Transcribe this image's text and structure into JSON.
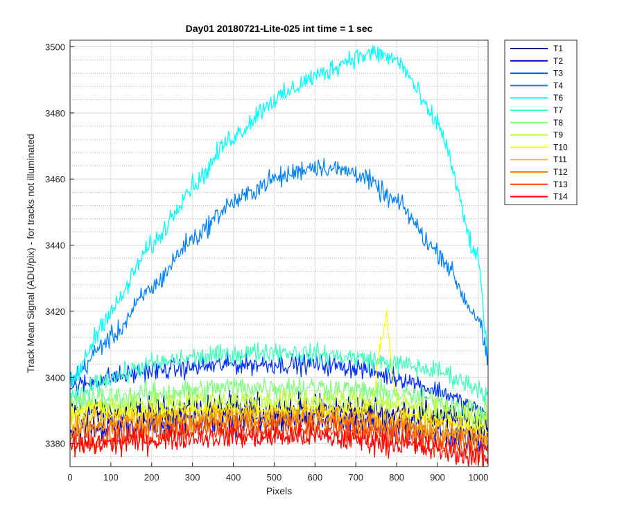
{
  "chart_data": {
    "type": "line",
    "title": "Day01 20180721-Lite-025 int time = 1 sec",
    "xlabel": "Pixels",
    "ylabel": "Track Mean Signal (ADU/pix) - for tracks not illuminated",
    "xlim": [
      0,
      1024
    ],
    "ylim": [
      3373,
      3502
    ],
    "xticks": [
      0,
      100,
      200,
      300,
      400,
      500,
      600,
      700,
      800,
      900,
      1000
    ],
    "yticks": [
      3380,
      3400,
      3420,
      3440,
      3460,
      3480,
      3500
    ],
    "grid": true,
    "minor_grid": true,
    "legend_position": "outside-right",
    "series": [
      {
        "name": "T1",
        "color": "#00008F",
        "x": [
          0,
          100,
          200,
          300,
          400,
          500,
          600,
          700,
          800,
          900,
          1000,
          1024
        ],
        "y": [
          3390,
          3389,
          3389,
          3390,
          3390,
          3390,
          3390,
          3390,
          3389,
          3388,
          3386,
          3385
        ],
        "noise": 2.5
      },
      {
        "name": "T2",
        "color": "#0000DF",
        "x": [
          0,
          100,
          200,
          300,
          400,
          500,
          600,
          700,
          800,
          900,
          1000,
          1024
        ],
        "y": [
          3384,
          3385,
          3386,
          3387,
          3387,
          3387,
          3387,
          3386,
          3385,
          3383,
          3381,
          3380
        ],
        "noise": 2.0
      },
      {
        "name": "T3",
        "color": "#0030FF",
        "x": [
          0,
          100,
          200,
          300,
          400,
          500,
          600,
          700,
          800,
          900,
          1000,
          1024
        ],
        "y": [
          3397,
          3400,
          3402,
          3403,
          3404,
          3404,
          3404,
          3403,
          3400,
          3396,
          3390,
          3388
        ],
        "noise": 1.5
      },
      {
        "name": "T4",
        "color": "#0080FF",
        "x": [
          0,
          100,
          200,
          300,
          400,
          500,
          600,
          700,
          800,
          900,
          1000,
          1024
        ],
        "y": [
          3399,
          3412,
          3427,
          3442,
          3453,
          3460,
          3464,
          3462,
          3453,
          3438,
          3418,
          3405
        ],
        "noise": 1.5
      },
      {
        "name": "T6",
        "color": "#00FFFF",
        "x": [
          0,
          100,
          200,
          300,
          400,
          500,
          600,
          700,
          750,
          800,
          900,
          1000,
          1024
        ],
        "y": [
          3398,
          3420,
          3440,
          3458,
          3473,
          3484,
          3491,
          3497,
          3498,
          3496,
          3477,
          3435,
          3407
        ],
        "noise": 1.5
      },
      {
        "name": "T7",
        "color": "#40FFBF",
        "x": [
          0,
          100,
          200,
          300,
          400,
          500,
          600,
          700,
          800,
          900,
          1000,
          1024
        ],
        "y": [
          3393,
          3400,
          3404,
          3406,
          3407,
          3408,
          3407,
          3406,
          3404,
          3402,
          3397,
          3394
        ],
        "noise": 1.5
      },
      {
        "name": "T8",
        "color": "#80FF80",
        "x": [
          0,
          100,
          200,
          300,
          400,
          500,
          600,
          700,
          800,
          900,
          1000,
          1024
        ],
        "y": [
          3392,
          3394,
          3395,
          3396,
          3397,
          3397,
          3397,
          3396,
          3395,
          3393,
          3390,
          3389
        ],
        "noise": 1.8
      },
      {
        "name": "T9",
        "color": "#BFFF40",
        "x": [
          0,
          100,
          200,
          300,
          400,
          500,
          600,
          700,
          800,
          900,
          1000,
          1024
        ],
        "y": [
          3389,
          3391,
          3392,
          3393,
          3393,
          3393,
          3393,
          3393,
          3392,
          3390,
          3387,
          3386
        ],
        "noise": 1.8
      },
      {
        "name": "T10",
        "color": "#FFFF00",
        "x": [
          0,
          60,
          100,
          200,
          300,
          400,
          500,
          600,
          700,
          740,
          760,
          775,
          790,
          810,
          900,
          1000,
          1024
        ],
        "y": [
          3388,
          3392,
          3389,
          3389,
          3390,
          3390,
          3390,
          3390,
          3390,
          3392,
          3410,
          3419,
          3400,
          3389,
          3387,
          3385,
          3384
        ],
        "noise": 1.0
      },
      {
        "name": "T11",
        "color": "#FFBF00",
        "x": [
          0,
          100,
          200,
          300,
          400,
          500,
          600,
          700,
          800,
          900,
          1000,
          1024
        ],
        "y": [
          3386,
          3387,
          3388,
          3388,
          3389,
          3389,
          3389,
          3388,
          3387,
          3385,
          3383,
          3382
        ],
        "noise": 1.8
      },
      {
        "name": "T12",
        "color": "#FF8000",
        "x": [
          0,
          100,
          200,
          300,
          400,
          500,
          600,
          700,
          800,
          900,
          1000,
          1024
        ],
        "y": [
          3383,
          3385,
          3386,
          3386,
          3387,
          3387,
          3387,
          3386,
          3385,
          3383,
          3381,
          3380
        ],
        "noise": 1.8
      },
      {
        "name": "T13",
        "color": "#FF4000",
        "x": [
          0,
          100,
          200,
          300,
          400,
          500,
          600,
          700,
          800,
          900,
          1000,
          1024
        ],
        "y": [
          3381,
          3382,
          3383,
          3384,
          3384,
          3384,
          3384,
          3383,
          3382,
          3380,
          3378,
          3377
        ],
        "noise": 1.8
      },
      {
        "name": "T14",
        "color": "#FF0000",
        "x": [
          0,
          100,
          200,
          300,
          400,
          500,
          600,
          700,
          800,
          900,
          1000,
          1024
        ],
        "y": [
          3379,
          3380,
          3381,
          3382,
          3382,
          3382,
          3382,
          3381,
          3380,
          3378,
          3376,
          3375
        ],
        "noise": 1.8
      }
    ]
  }
}
